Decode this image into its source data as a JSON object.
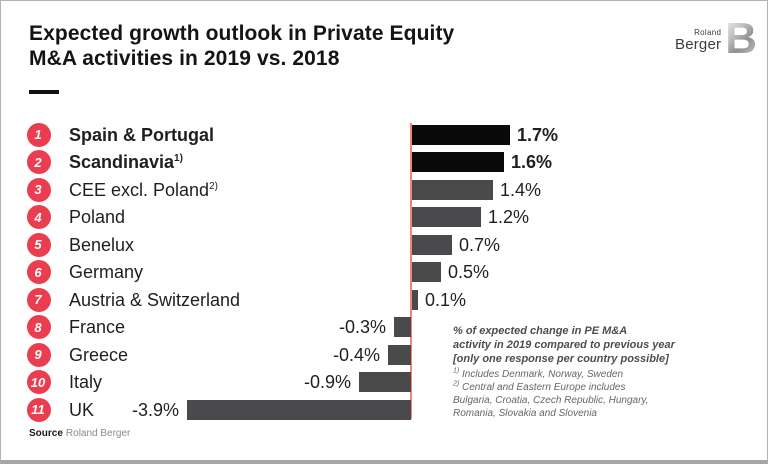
{
  "slide": {
    "title_line1": "Expected growth outlook in Private Equity",
    "title_line2": "M&A activities in 2019 vs. 2018",
    "logo": {
      "top": "Roland",
      "bottom": "Berger",
      "mark": "B"
    },
    "source_label": "Source",
    "source_value": "Roland Berger"
  },
  "annotation_lines": [
    "% of expected change in PE M&A",
    "activity in 2019 compared to previous year",
    "[only one response per country possible]"
  ],
  "footnotes": [
    {
      "sup": "1)",
      "text": " Includes Denmark, Norway, Sweden"
    },
    {
      "sup": "2)",
      "text": " Central and Eastern Europe includes Bulgaria, Croatia, Czech Republic, Hungary, Romania, Slovakia and Slovenia"
    }
  ],
  "colors": {
    "badge_red": "#ea3d4f",
    "axis_red": "#f4837a",
    "bar_black": "#0a0a0a",
    "bar_gray": "#4a4a4c"
  },
  "chart_data": {
    "type": "bar",
    "orientation": "horizontal",
    "title": "Expected growth outlook in Private Equity M&A activities in 2019 vs. 2018",
    "xlabel": "",
    "ylabel": "",
    "unit": "%",
    "xlim": [
      -4.2,
      1.9
    ],
    "grid": false,
    "legend": false,
    "categories": [
      "Spain & Portugal",
      "Scandinavia",
      "CEE excl. Poland",
      "Poland",
      "Benelux",
      "Germany",
      "Austria & Switzerland",
      "France",
      "Greece",
      "Italy",
      "UK"
    ],
    "values": [
      1.7,
      1.6,
      1.4,
      1.2,
      0.7,
      0.5,
      0.1,
      -0.3,
      -0.4,
      -0.9,
      -3.9
    ],
    "rows": [
      {
        "rank": "1",
        "label": "Spain & Portugal",
        "sup": "",
        "value": 1.7,
        "display": "1.7%",
        "emphasis": true
      },
      {
        "rank": "2",
        "label": "Scandinavia",
        "sup": "1)",
        "value": 1.6,
        "display": "1.6%",
        "emphasis": true
      },
      {
        "rank": "3",
        "label": "CEE excl. Poland",
        "sup": "2)",
        "value": 1.4,
        "display": "1.4%",
        "emphasis": false
      },
      {
        "rank": "4",
        "label": "Poland",
        "sup": "",
        "value": 1.2,
        "display": "1.2%",
        "emphasis": false
      },
      {
        "rank": "5",
        "label": "Benelux",
        "sup": "",
        "value": 0.7,
        "display": "0.7%",
        "emphasis": false
      },
      {
        "rank": "6",
        "label": "Germany",
        "sup": "",
        "value": 0.5,
        "display": "0.5%",
        "emphasis": false
      },
      {
        "rank": "7",
        "label": "Austria & Switzerland",
        "sup": "",
        "value": 0.1,
        "display": "0.1%",
        "emphasis": false
      },
      {
        "rank": "8",
        "label": "France",
        "sup": "",
        "value": -0.3,
        "display": "-0.3%",
        "emphasis": false
      },
      {
        "rank": "9",
        "label": "Greece",
        "sup": "",
        "value": -0.4,
        "display": "-0.4%",
        "emphasis": false
      },
      {
        "rank": "10",
        "label": "Italy",
        "sup": "",
        "value": -0.9,
        "display": "-0.9%",
        "emphasis": false
      },
      {
        "rank": "11",
        "label": "UK",
        "sup": "",
        "value": -3.9,
        "display": "-3.9%",
        "emphasis": false
      }
    ]
  }
}
